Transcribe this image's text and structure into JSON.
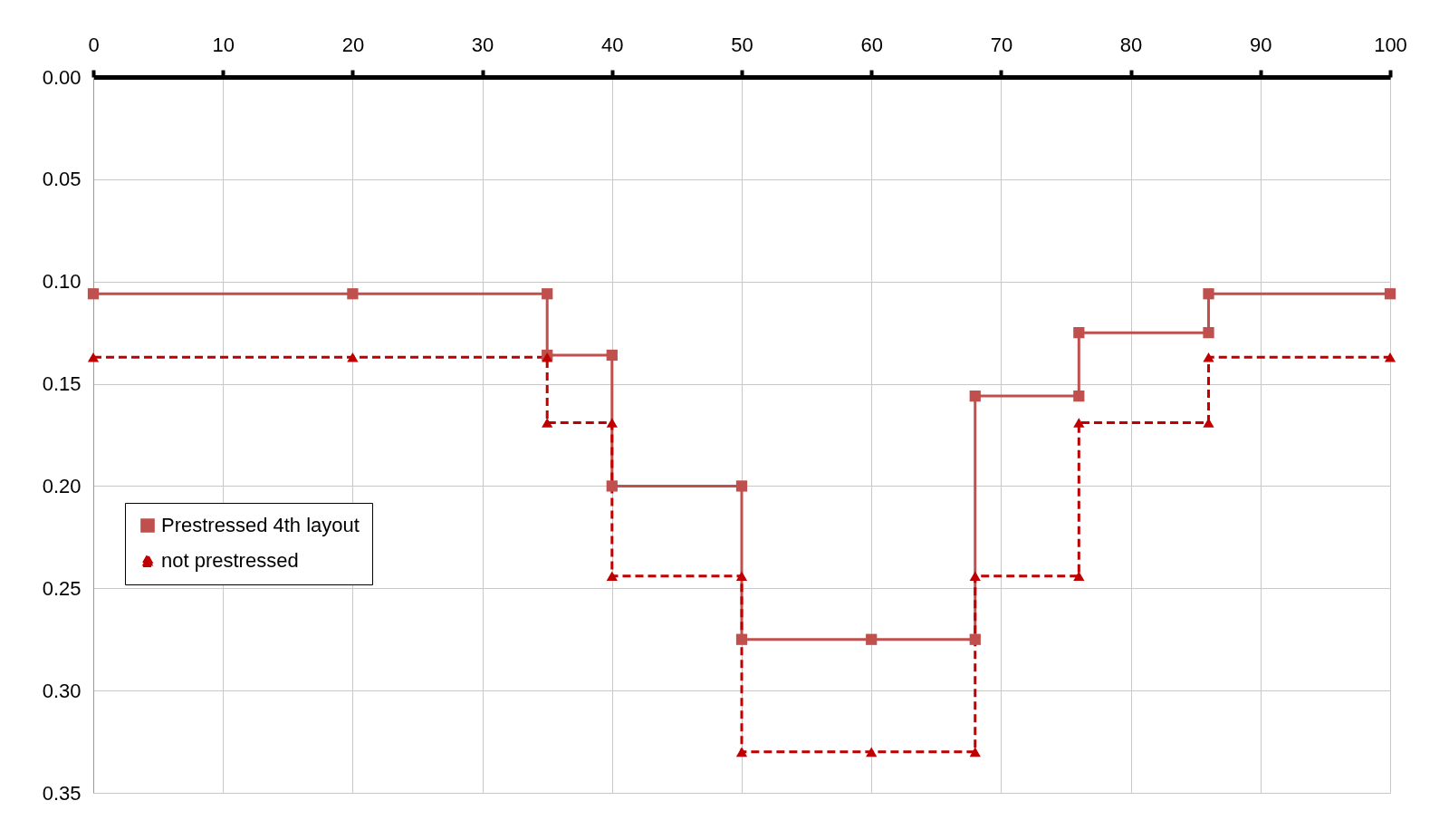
{
  "chart_data": {
    "type": "line",
    "xlim": [
      0,
      100
    ],
    "xticks": [
      0,
      10,
      20,
      30,
      40,
      50,
      60,
      70,
      80,
      90,
      100
    ],
    "ylim": [
      0.35,
      0
    ],
    "yticks": [
      {
        "value": 0,
        "label": "0.00"
      },
      {
        "value": 0.05,
        "label": "0.05"
      },
      {
        "value": 0.1,
        "label": "0.10"
      },
      {
        "value": 0.15,
        "label": "0.15"
      },
      {
        "value": 0.2,
        "label": "0.20"
      },
      {
        "value": 0.25,
        "label": "0.25"
      },
      {
        "value": 0.3,
        "label": "0.30"
      },
      {
        "value": 0.35,
        "label": "0.35"
      }
    ],
    "grid": true,
    "legend": "left",
    "series": [
      {
        "name": "Prestressed 4th layout",
        "color": "#c0504d",
        "marker": "square",
        "line_style": "solid",
        "x": [
          0,
          20,
          35,
          35,
          40,
          40,
          50,
          50,
          60,
          68,
          68,
          76,
          76,
          86,
          86,
          100
        ],
        "values": [
          0.106,
          0.106,
          0.106,
          0.136,
          0.136,
          0.2,
          0.2,
          0.275,
          0.275,
          0.275,
          0.156,
          0.156,
          0.125,
          0.125,
          0.106,
          0.106
        ]
      },
      {
        "name": "not prestressed",
        "color": "#c00000",
        "marker": "triangle",
        "line_style": "dashed",
        "x": [
          0,
          20,
          35,
          35,
          40,
          40,
          50,
          50,
          60,
          68,
          68,
          76,
          76,
          86,
          86,
          100
        ],
        "values": [
          0.137,
          0.137,
          0.137,
          0.169,
          0.169,
          0.244,
          0.244,
          0.33,
          0.33,
          0.33,
          0.244,
          0.244,
          0.169,
          0.169,
          0.137,
          0.137
        ]
      }
    ]
  }
}
